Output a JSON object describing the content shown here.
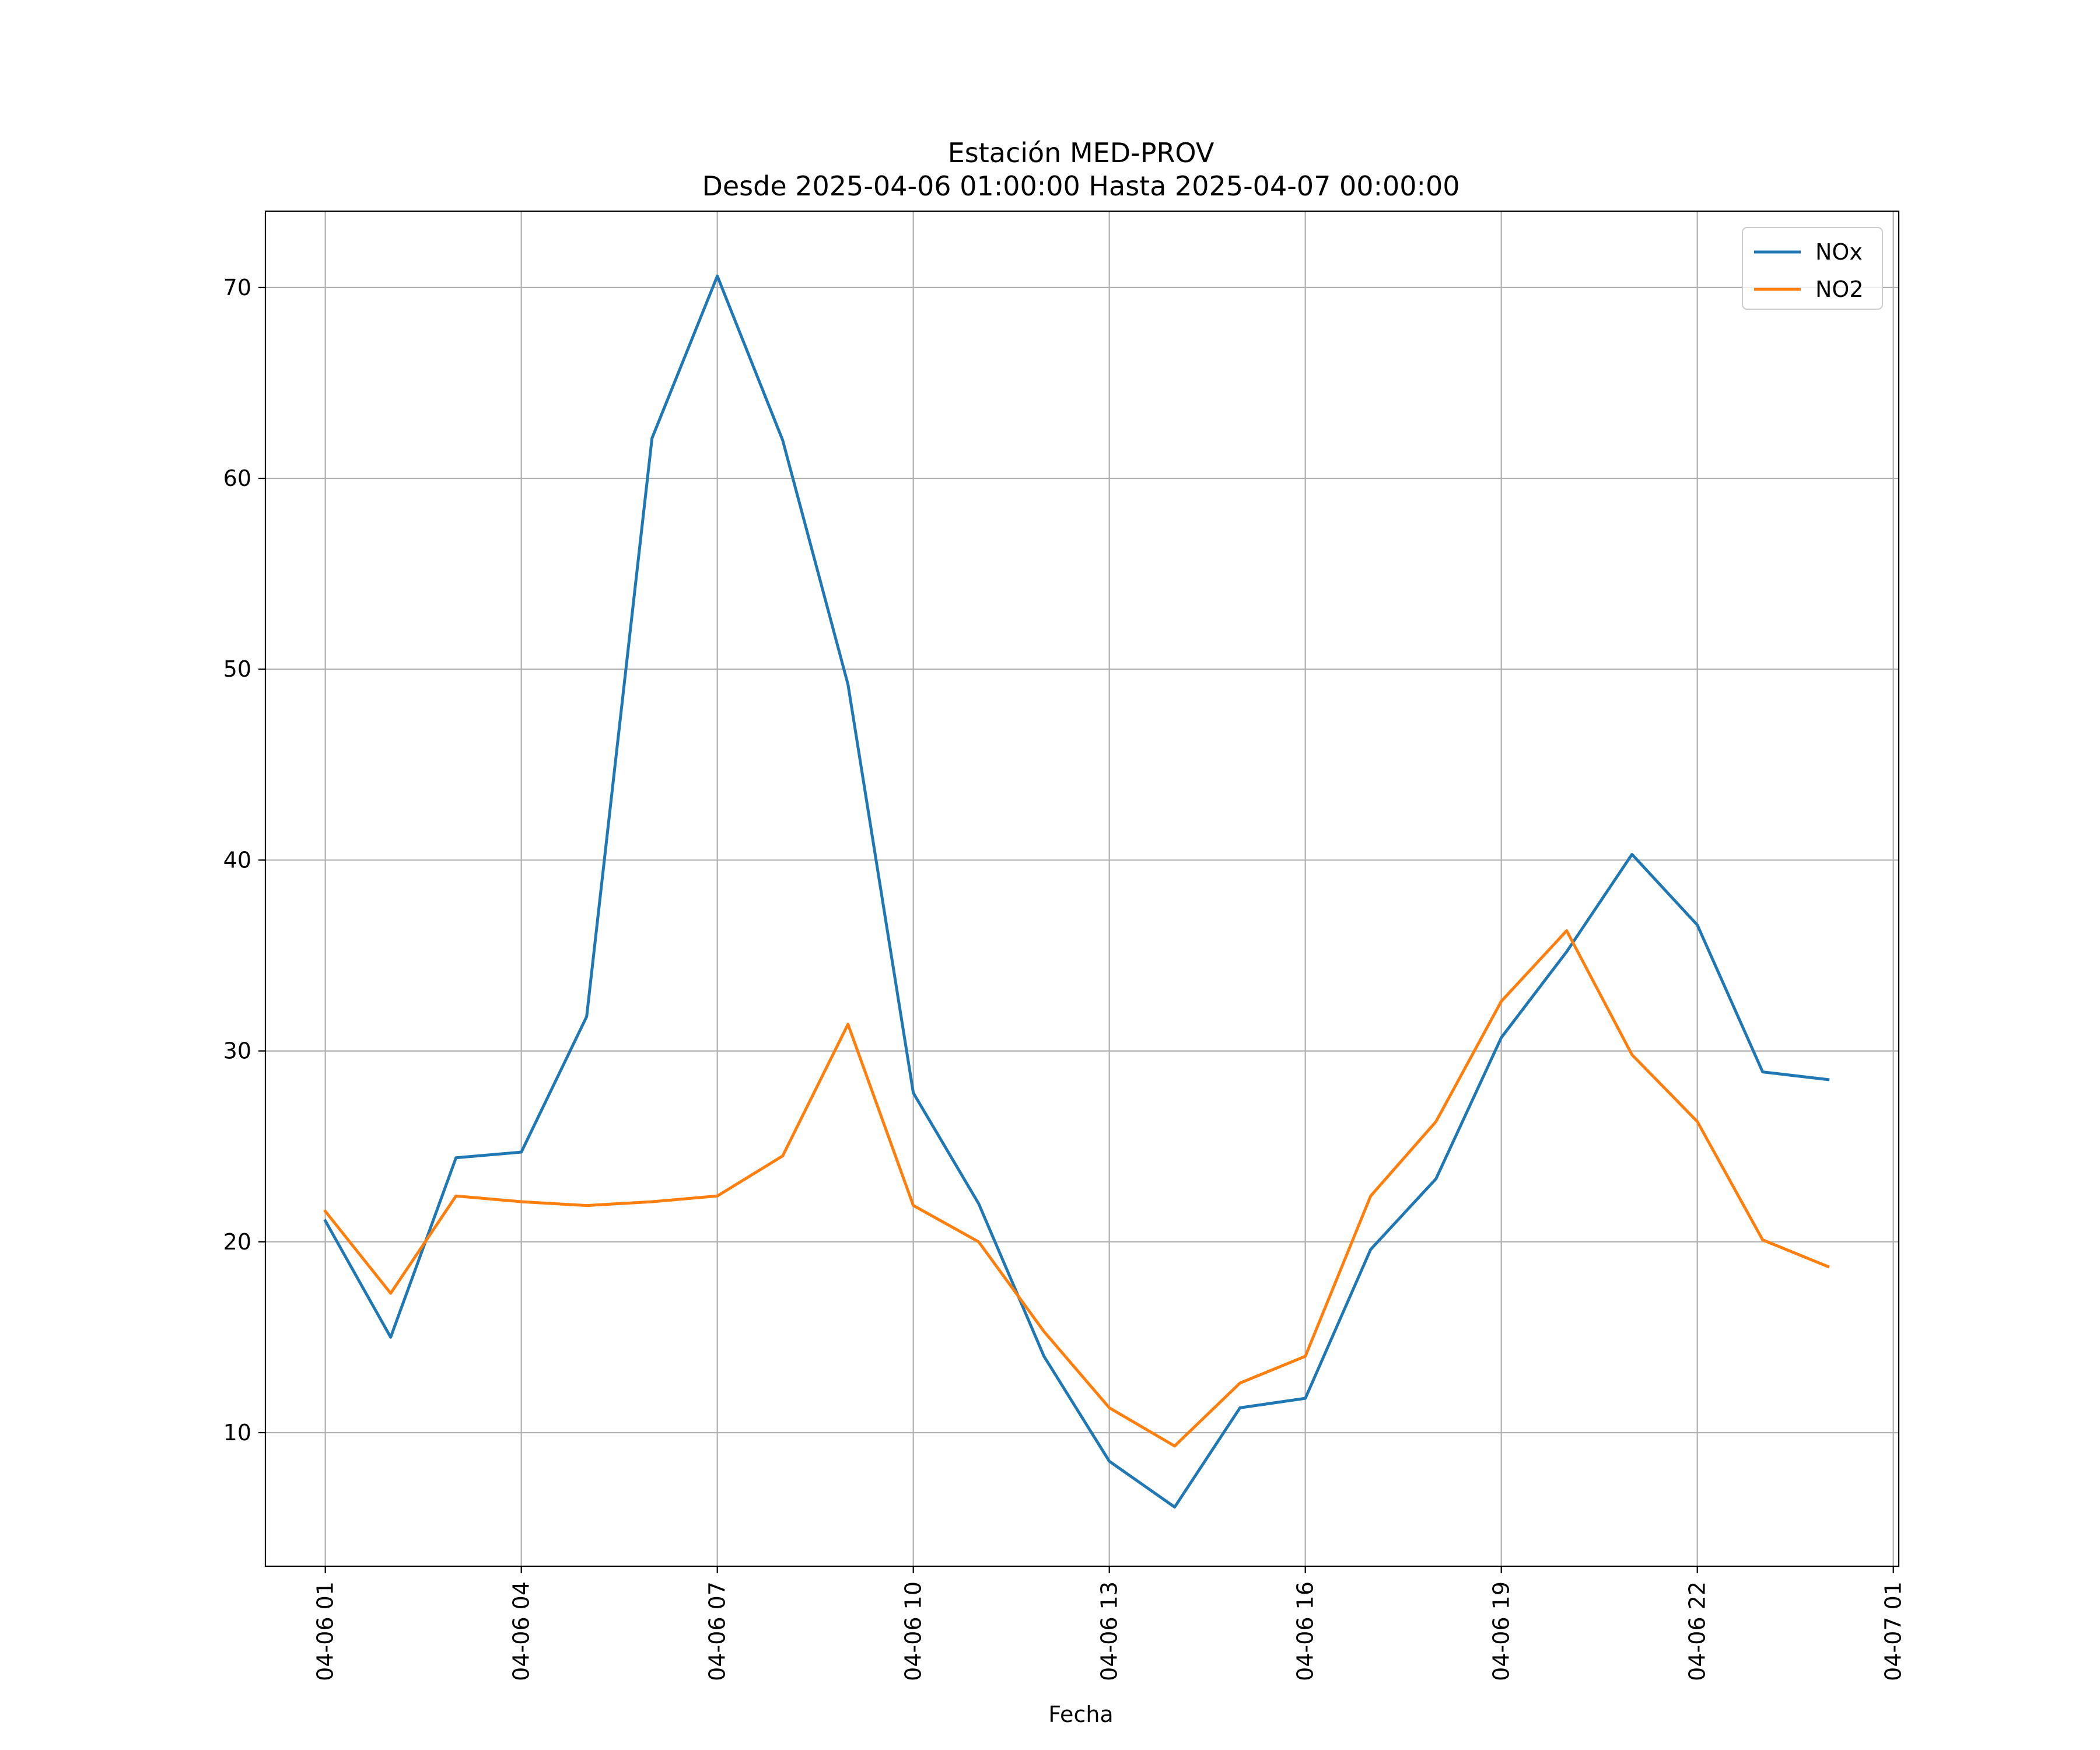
{
  "chart_data": {
    "type": "line",
    "title": "Estación MED-PROV",
    "subtitle": "Desde 2025-04-06 01:00:00 Hasta 2025-04-07 00:00:00",
    "xlabel": "Fecha",
    "ylabel": "",
    "x": [
      "2025-04-06 01:00",
      "2025-04-06 02:00",
      "2025-04-06 03:00",
      "2025-04-06 04:00",
      "2025-04-06 05:00",
      "2025-04-06 06:00",
      "2025-04-06 07:00",
      "2025-04-06 08:00",
      "2025-04-06 09:00",
      "2025-04-06 10:00",
      "2025-04-06 11:00",
      "2025-04-06 12:00",
      "2025-04-06 13:00",
      "2025-04-06 14:00",
      "2025-04-06 15:00",
      "2025-04-06 16:00",
      "2025-04-06 17:00",
      "2025-04-06 18:00",
      "2025-04-06 19:00",
      "2025-04-06 20:00",
      "2025-04-06 21:00",
      "2025-04-06 22:00",
      "2025-04-06 23:00",
      "2025-04-07 00:00"
    ],
    "xlim": [
      "2025-04-06 00:05",
      "2025-04-07 01:05"
    ],
    "x_ticks": [
      {
        "x": "2025-04-06 01:00",
        "label": "04-06 01"
      },
      {
        "x": "2025-04-06 04:00",
        "label": "04-06 04"
      },
      {
        "x": "2025-04-06 07:00",
        "label": "04-06 07"
      },
      {
        "x": "2025-04-06 10:00",
        "label": "04-06 10"
      },
      {
        "x": "2025-04-06 13:00",
        "label": "04-06 13"
      },
      {
        "x": "2025-04-06 16:00",
        "label": "04-06 16"
      },
      {
        "x": "2025-04-06 19:00",
        "label": "04-06 19"
      },
      {
        "x": "2025-04-06 22:00",
        "label": "04-06 22"
      },
      {
        "x": "2025-04-07 01:00",
        "label": "04-07 01"
      }
    ],
    "ylim": [
      3,
      74
    ],
    "y_ticks": [
      10,
      20,
      30,
      40,
      50,
      60,
      70
    ],
    "grid": true,
    "legend_position": "top-right",
    "series": [
      {
        "name": "NOx",
        "color": "#1f77b4",
        "values": [
          21.1,
          15.0,
          24.4,
          24.7,
          31.8,
          62.1,
          70.6,
          62.0,
          49.2,
          27.8,
          22.0,
          14.0,
          8.5,
          6.1,
          11.3,
          11.8,
          19.6,
          23.3,
          30.7,
          35.2,
          40.3,
          36.6,
          28.9,
          28.5
        ]
      },
      {
        "name": "NO2",
        "color": "#ff7f0e",
        "values": [
          21.6,
          17.3,
          22.4,
          22.1,
          21.9,
          22.1,
          22.4,
          24.5,
          31.4,
          21.9,
          20.0,
          15.3,
          11.3,
          9.3,
          12.6,
          14.0,
          22.4,
          26.3,
          32.6,
          36.3,
          29.8,
          26.3,
          20.1,
          18.7
        ]
      }
    ]
  }
}
